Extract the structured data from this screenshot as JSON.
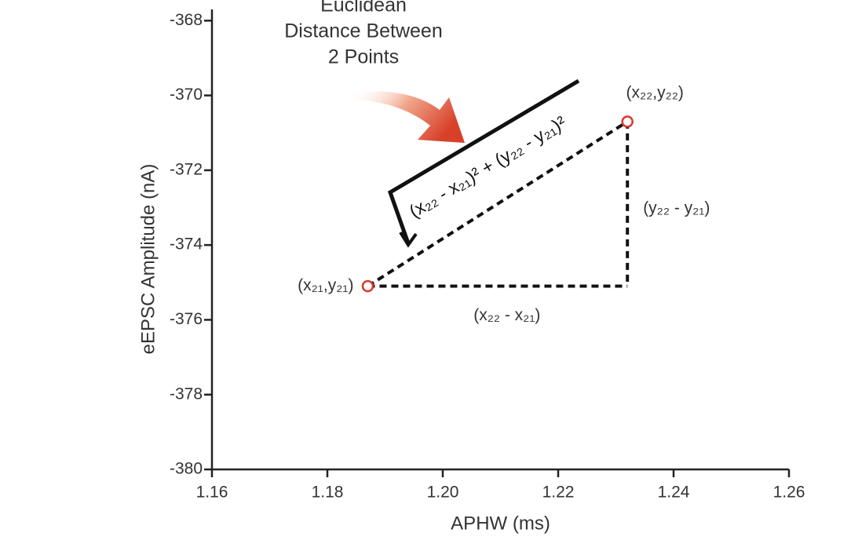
{
  "chart_data": {
    "type": "scatter",
    "annotation_title": [
      "Euclidean",
      "Distance Between",
      "2 Points"
    ],
    "xlabel": "APHW (ms)",
    "ylabel": "eEPSC Amplitude (nA)",
    "xlim": [
      1.16,
      1.26
    ],
    "ylim": [
      -380,
      -367.7
    ],
    "xticks": [
      1.16,
      1.18,
      {
        "value": 1.2,
        "label": "1.20"
      },
      1.22,
      1.24,
      1.26
    ],
    "yticks": [
      -380,
      -378,
      -376,
      -374,
      -372,
      -370,
      -368
    ],
    "series": [
      {
        "color": "#d83a2e",
        "x": [
          1.187,
          1.232
        ],
        "values": [
          -375.1,
          -370.7
        ]
      }
    ],
    "point_labels": [
      "(x₂₁,y₂₁)",
      "(x₂₂,y₂₂)"
    ],
    "dx_label": "(x₂₂ - x₂₁)",
    "dy_label": "(y₂₂ - y₂₁)",
    "formula": "(x₂₂ - x₂₁)² + (y₂₂ - y₂₁)²"
  }
}
